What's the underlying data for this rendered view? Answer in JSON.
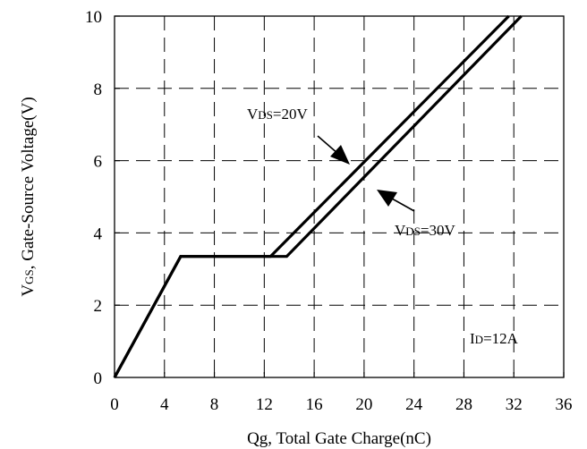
{
  "chart_data": {
    "type": "line",
    "title": "",
    "xlabel": "Qg, Total Gate Charge(nC)",
    "ylabel": {
      "main": "V",
      "sub": "GS",
      "rest": ", Gate-Source Voltage(V)"
    },
    "xlim": [
      0,
      36
    ],
    "ylim": [
      0,
      10
    ],
    "xticks": [
      0,
      4,
      8,
      12,
      16,
      20,
      24,
      28,
      32,
      36
    ],
    "yticks": [
      0,
      2,
      4,
      6,
      8,
      10
    ],
    "grid": true,
    "grid_style": "dashed",
    "series": [
      {
        "label": {
          "main": "V",
          "sub": "DS",
          "rest": "=20V"
        },
        "points": [
          [
            0,
            0
          ],
          [
            5.3,
            3.35
          ],
          [
            12.5,
            3.35
          ],
          [
            31.6,
            10
          ]
        ]
      },
      {
        "label": {
          "main": "V",
          "sub": "DS",
          "rest": "=30V"
        },
        "points": [
          [
            0,
            0
          ],
          [
            5.3,
            3.35
          ],
          [
            13.8,
            3.35
          ],
          [
            32.6,
            10
          ]
        ]
      }
    ],
    "condition": {
      "main": "I",
      "sub": "D",
      "rest": "=12A"
    },
    "line_color": "#000000"
  }
}
